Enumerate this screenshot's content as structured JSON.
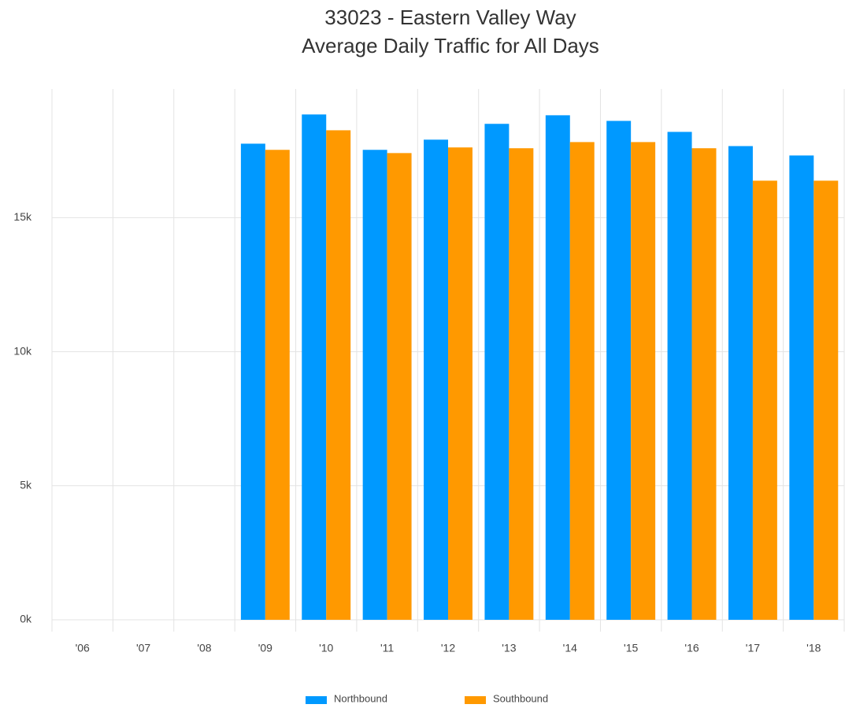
{
  "chart_data": {
    "type": "bar",
    "title": [
      "33023 - Eastern Valley Way",
      "Average Daily Traffic for All Days"
    ],
    "categories": [
      "'06",
      "'07",
      "'08",
      "'09",
      "'10",
      "'11",
      "'12",
      "'13",
      "'14",
      "'15",
      "'16",
      "'17",
      "'18"
    ],
    "series": [
      {
        "name": "Northbound",
        "color": "#0099ff",
        "values": [
          null,
          null,
          null,
          17760,
          18850,
          17530,
          17910,
          18500,
          18820,
          18610,
          18200,
          17670,
          17320
        ]
      },
      {
        "name": "Southbound",
        "color": "#ff9900",
        "values": [
          null,
          null,
          null,
          17530,
          18260,
          17410,
          17620,
          17590,
          17820,
          17820,
          17590,
          16380,
          16380
        ]
      }
    ],
    "ylim": [
      0,
      19800
    ],
    "yticks": [
      {
        "value": 0,
        "label": "0k"
      },
      {
        "value": 5000,
        "label": "5k"
      },
      {
        "value": 10000,
        "label": "10k"
      },
      {
        "value": 15000,
        "label": "15k"
      }
    ],
    "grid": true,
    "legend": "bottom"
  }
}
